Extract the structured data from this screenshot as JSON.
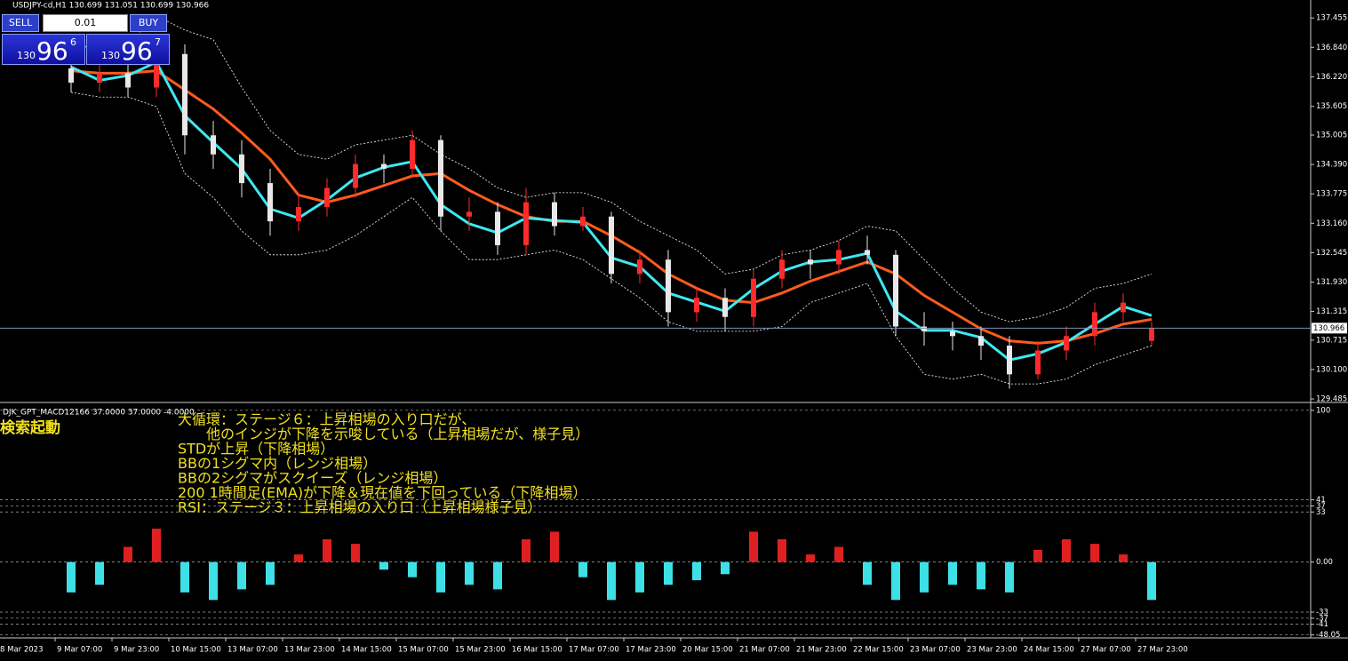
{
  "header": {
    "symbol_line": "USDJPY-cd,H1  130.699 131.051 130.699 130.966"
  },
  "trade_panel": {
    "sell": "SELL",
    "lot": "0.01",
    "buy": "BUY",
    "sell_price": [
      "130",
      "96",
      "6"
    ],
    "buy_price": [
      "130",
      "96",
      "7"
    ]
  },
  "chart_data": [
    {
      "type": "candlestick",
      "xtick_labels": [
        "8 Mar 2023",
        "9 Mar 07:00",
        "9 Mar 23:00",
        "10 Mar 15:00",
        "13 Mar 07:00",
        "13 Mar 23:00",
        "14 Mar 15:00",
        "15 Mar 07:00",
        "15 Mar 23:00",
        "16 Mar 15:00",
        "17 Mar 07:00",
        "17 Mar 23:00",
        "20 Mar 15:00",
        "21 Mar 07:00",
        "21 Mar 23:00",
        "22 Mar 15:00",
        "23 Mar 07:00",
        "23 Mar 23:00",
        "24 Mar 15:00",
        "27 Mar 07:00",
        "27 Mar 23:00"
      ],
      "open": [
        136.4,
        136.1,
        136.3,
        136.0,
        136.7,
        135.0,
        134.6,
        134.0,
        133.2,
        133.5,
        133.9,
        134.4,
        134.3,
        134.9,
        133.3,
        133.4,
        132.7,
        133.6,
        133.1,
        133.3,
        132.1,
        132.4,
        131.3,
        131.6,
        131.2,
        132.0,
        132.4,
        132.3,
        132.6,
        132.5,
        131.0,
        130.9,
        130.8,
        130.6,
        130.0,
        130.5,
        130.8,
        131.3,
        130.7
      ],
      "high": [
        136.6,
        136.5,
        136.5,
        136.8,
        136.9,
        135.3,
        134.9,
        134.3,
        133.8,
        134.1,
        134.6,
        134.6,
        135.1,
        135.0,
        133.7,
        133.6,
        133.9,
        133.8,
        133.5,
        133.4,
        132.6,
        132.6,
        131.8,
        131.8,
        132.2,
        132.6,
        132.6,
        132.8,
        132.9,
        132.6,
        131.3,
        131.1,
        131.0,
        130.8,
        130.7,
        131.0,
        131.5,
        131.7,
        131.1
      ],
      "low": [
        135.9,
        135.9,
        135.8,
        135.8,
        134.6,
        134.3,
        133.7,
        132.9,
        133.0,
        133.3,
        133.7,
        134.0,
        134.1,
        133.0,
        133.0,
        132.5,
        132.5,
        132.9,
        133.0,
        131.9,
        131.9,
        131.0,
        131.1,
        130.9,
        131.0,
        131.8,
        132.0,
        132.1,
        132.3,
        130.8,
        130.6,
        130.5,
        130.3,
        129.7,
        129.9,
        130.3,
        130.6,
        131.1,
        130.6
      ],
      "close": [
        136.1,
        136.3,
        136.0,
        136.7,
        135.0,
        134.6,
        134.0,
        133.2,
        133.5,
        133.9,
        134.4,
        134.3,
        134.9,
        133.3,
        133.4,
        132.7,
        133.6,
        133.1,
        133.3,
        132.1,
        132.4,
        131.3,
        131.6,
        131.2,
        132.0,
        132.4,
        132.3,
        132.6,
        132.5,
        131.0,
        130.9,
        130.8,
        130.6,
        130.0,
        130.5,
        130.8,
        131.3,
        131.5,
        130.97
      ],
      "up_color": "#ff2a2a",
      "down_color": "#e8e8e8",
      "series": [
        {
          "color": "#ffffff",
          "style": "dashed",
          "values": [
            136.9,
            136.8,
            136.9,
            137.5,
            137.2,
            137.0,
            136.0,
            135.1,
            134.6,
            134.5,
            134.8,
            134.9,
            135.0,
            134.6,
            134.3,
            133.9,
            133.7,
            133.8,
            133.8,
            133.6,
            133.2,
            132.9,
            132.6,
            132.1,
            132.2,
            132.5,
            132.6,
            132.8,
            133.1,
            133.0,
            132.4,
            131.8,
            131.3,
            131.1,
            131.2,
            131.4,
            131.8,
            131.9,
            132.1
          ]
        },
        {
          "color": "#ffffff",
          "style": "dashed",
          "values": [
            135.9,
            135.8,
            135.8,
            135.6,
            134.2,
            133.7,
            133.0,
            132.5,
            132.5,
            132.6,
            132.9,
            133.3,
            133.7,
            133.0,
            132.4,
            132.4,
            132.5,
            132.6,
            132.4,
            132.0,
            131.6,
            131.1,
            130.9,
            130.9,
            130.9,
            131.0,
            131.5,
            131.7,
            131.9,
            130.8,
            130.0,
            129.9,
            130.0,
            129.8,
            129.8,
            129.9,
            130.2,
            130.4,
            130.6
          ]
        },
        {
          "color": "#ff5a1e",
          "style": "solid",
          "values": [
            136.35,
            136.3,
            136.3,
            136.35,
            135.95,
            135.55,
            135.05,
            134.5,
            133.75,
            133.6,
            133.75,
            133.95,
            134.15,
            134.2,
            133.85,
            133.55,
            133.3,
            133.2,
            133.2,
            132.9,
            132.55,
            132.1,
            131.8,
            131.55,
            131.5,
            131.7,
            131.95,
            132.15,
            132.35,
            132.1,
            131.65,
            131.3,
            130.95,
            130.7,
            130.65,
            130.7,
            130.85,
            131.05,
            131.15
          ]
        },
        {
          "color": "#3ee8f0",
          "style": "solid",
          "values": [
            136.43,
            136.15,
            136.25,
            136.53,
            135.41,
            134.85,
            134.3,
            133.46,
            133.27,
            133.65,
            134.11,
            134.33,
            134.45,
            133.55,
            133.15,
            132.96,
            133.27,
            133.22,
            133.18,
            132.44,
            132.25,
            131.7,
            131.51,
            131.32,
            131.79,
            132.16,
            132.35,
            132.4,
            132.53,
            131.32,
            130.92,
            130.92,
            130.77,
            130.3,
            130.43,
            130.67,
            131.05,
            131.42,
            131.23
          ]
        }
      ],
      "current_price": 130.966,
      "ylim": [
        129.43,
        137.83
      ],
      "yticks": [
        {
          "value": 137.455,
          "label": "137.455"
        },
        {
          "value": 136.84,
          "label": "136.840"
        },
        {
          "value": 136.22,
          "label": "136.220"
        },
        {
          "value": 135.605,
          "label": "135.605"
        },
        {
          "value": 135.005,
          "label": "135.005"
        },
        {
          "value": 134.39,
          "label": "134.390"
        },
        {
          "value": 133.775,
          "label": "133.775"
        },
        {
          "value": 133.16,
          "label": "133.160"
        },
        {
          "value": 132.545,
          "label": "132.545"
        },
        {
          "value": 131.93,
          "label": "131.930"
        },
        {
          "value": 131.315,
          "label": "131.315"
        },
        {
          "value": 130.715,
          "label": "130.715"
        },
        {
          "value": 130.1,
          "label": "130.100"
        },
        {
          "value": 129.485,
          "label": "129.485"
        }
      ]
    },
    {
      "type": "bar",
      "title": "DJK_GPT_MACD12166 37.0000 37.0000 -4.0000",
      "status": "検索起動",
      "annotations": [
        "大循環：ステージ６：上昇相場の入り口だが、",
        "　　他のインジが下降を示唆している（上昇相場だが、様子見）",
        "STDが上昇（下降相場）",
        "BBの1シグマ内（レンジ相場）",
        "BBの2シグマがスクイーズ（レンジ相場）",
        "200 1時間足(EMA)が下降＆現在値を下回っている（下降相場）",
        "RSI：ステージ３：上昇相場の入り口（上昇相場様子見）"
      ],
      "values": [
        -20,
        -15,
        10,
        22,
        -20,
        -25,
        -18,
        -15,
        5,
        15,
        12,
        -5,
        -10,
        -20,
        -15,
        -18,
        15,
        20,
        -10,
        -25,
        -20,
        -15,
        -12,
        -8,
        20,
        15,
        5,
        10,
        -15,
        -25,
        -20,
        -15,
        -18,
        -20,
        8,
        15,
        12,
        5,
        -25
      ],
      "positive_color": "#e02020",
      "negative_color": "#3ee0e8",
      "ylim": [
        -50,
        104
      ],
      "yticks": [
        100,
        41,
        37,
        33,
        {
          "value": 0,
          "label": "0.00"
        },
        -33,
        -37,
        -41,
        -48.05
      ]
    }
  ]
}
